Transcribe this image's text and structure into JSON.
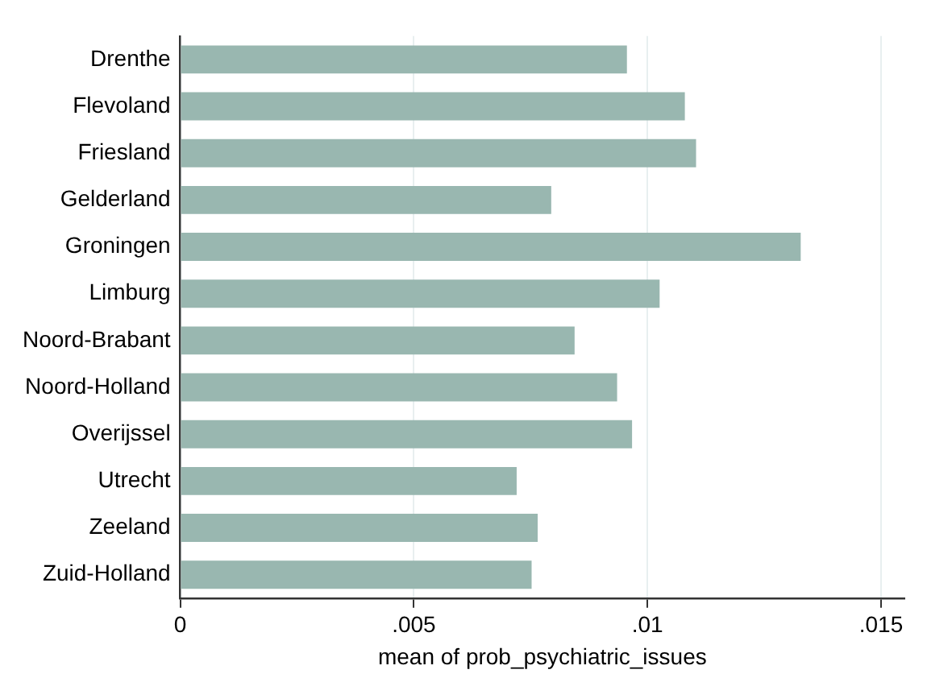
{
  "chart_data": {
    "type": "bar",
    "orientation": "horizontal",
    "xlabel": "mean of prob_psychiatric_issues",
    "categories": [
      "Drenthe",
      "Flevoland",
      "Friesland",
      "Gelderland",
      "Groningen",
      "Limburg",
      "Noord-Brabant",
      "Noord-Holland",
      "Overijssel",
      "Utrecht",
      "Zeeland",
      "Zuid-Holland"
    ],
    "values": [
      0.00956,
      0.0108,
      0.01104,
      0.00794,
      0.01328,
      0.01026,
      0.00844,
      0.00935,
      0.00967,
      0.0072,
      0.00765,
      0.00752
    ],
    "color": "#99b7b0",
    "xlim": [
      0,
      0.0155
    ],
    "xticks": [
      {
        "value": 0,
        "label": "0"
      },
      {
        "value": 0.005,
        "label": ".005"
      },
      {
        "value": 0.01,
        "label": ".01"
      },
      {
        "value": 0.015,
        "label": ".015"
      }
    ],
    "grid": "x",
    "legend": false
  }
}
